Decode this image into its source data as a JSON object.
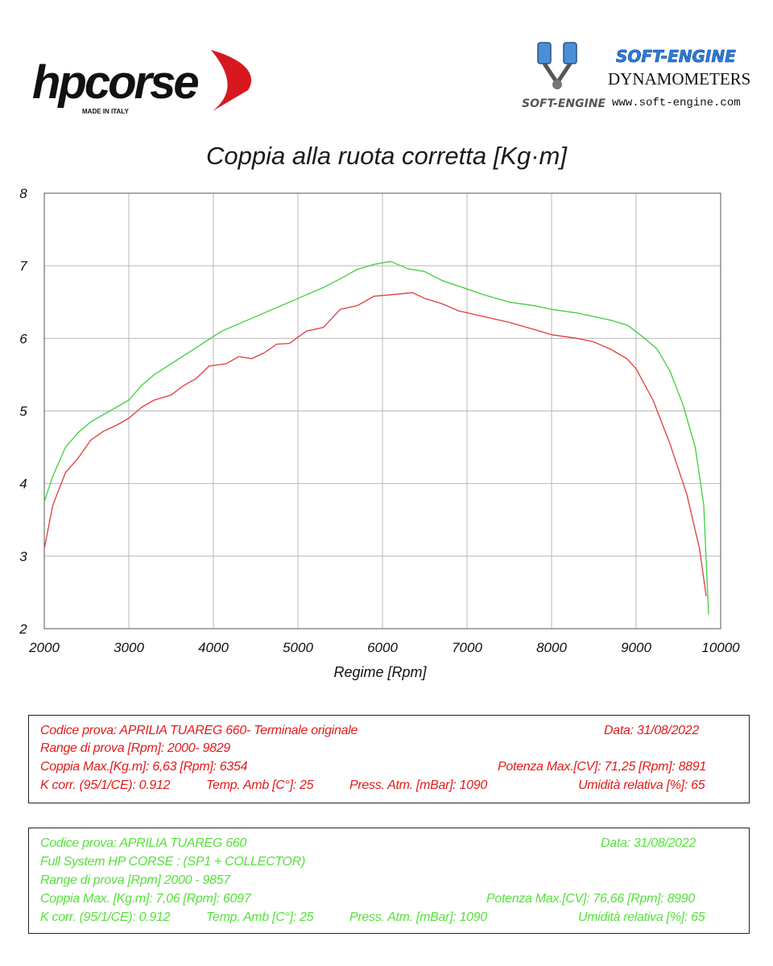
{
  "logos": {
    "left": {
      "wordmark": "hpcorse",
      "tagline": "MADE IN ITALY"
    },
    "right": {
      "brand": "SOFT-ENGINE",
      "subtitle": "DYNAMOMETERS",
      "url": "www.soft-engine.com",
      "badge": "SOFT-ENGINE"
    }
  },
  "chart_data": {
    "type": "line",
    "title": "Coppia alla ruota corretta [Kg·m]",
    "xlabel": "Regime [Rpm]",
    "ylabel": "",
    "xlim": [
      2000,
      10000
    ],
    "ylim": [
      2,
      8
    ],
    "xticks": [
      2000,
      3000,
      4000,
      5000,
      6000,
      7000,
      8000,
      9000,
      10000
    ],
    "yticks": [
      2,
      3,
      4,
      5,
      6,
      7,
      8
    ],
    "grid": true,
    "series": [
      {
        "color": "#e23b3b",
        "x": [
          2000,
          2100,
          2250,
          2400,
          2550,
          2700,
          2850,
          3000,
          3150,
          3300,
          3500,
          3650,
          3800,
          3950,
          4150,
          4300,
          4450,
          4600,
          4750,
          4900,
          5100,
          5300,
          5500,
          5700,
          5900,
          6100,
          6354,
          6500,
          6700,
          6900,
          7200,
          7500,
          7800,
          8000,
          8300,
          8500,
          8700,
          8891,
          9000,
          9200,
          9400,
          9600,
          9750,
          9829
        ],
        "y": [
          3.1,
          3.7,
          4.15,
          4.35,
          4.6,
          4.72,
          4.8,
          4.9,
          5.05,
          5.15,
          5.22,
          5.35,
          5.45,
          5.62,
          5.65,
          5.75,
          5.72,
          5.8,
          5.92,
          5.93,
          6.1,
          6.15,
          6.4,
          6.45,
          6.58,
          6.6,
          6.63,
          6.55,
          6.48,
          6.38,
          6.3,
          6.22,
          6.12,
          6.05,
          6.0,
          5.95,
          5.85,
          5.72,
          5.58,
          5.15,
          4.55,
          3.85,
          3.1,
          2.45
        ]
      },
      {
        "color": "#3dcf3d",
        "x": [
          2000,
          2100,
          2250,
          2400,
          2550,
          2700,
          2850,
          3000,
          3150,
          3300,
          3500,
          3700,
          3900,
          4100,
          4300,
          4500,
          4700,
          4900,
          5100,
          5300,
          5500,
          5700,
          5900,
          6097,
          6300,
          6500,
          6700,
          6900,
          7200,
          7500,
          7800,
          8000,
          8300,
          8500,
          8700,
          8900,
          8990,
          9100,
          9250,
          9400,
          9550,
          9700,
          9800,
          9857
        ],
        "y": [
          3.75,
          4.1,
          4.5,
          4.7,
          4.85,
          4.95,
          5.05,
          5.15,
          5.35,
          5.5,
          5.65,
          5.8,
          5.95,
          6.1,
          6.2,
          6.3,
          6.4,
          6.5,
          6.6,
          6.7,
          6.82,
          6.95,
          7.02,
          7.06,
          6.96,
          6.92,
          6.8,
          6.72,
          6.6,
          6.5,
          6.45,
          6.4,
          6.35,
          6.3,
          6.25,
          6.18,
          6.1,
          6.0,
          5.85,
          5.55,
          5.1,
          4.5,
          3.7,
          2.2
        ]
      }
    ]
  },
  "boxes": {
    "red": {
      "line1_left": "Codice prova: APRILIA TUAREG 660- Terminale originale",
      "line1_right": "Data: 31/08/2022",
      "line2": "Range di prova [Rpm]: 2000- 9829",
      "line3_left": "Coppia Max.[Kg.m]: 6,63 [Rpm]: 6354",
      "line3_right": "Potenza Max.[CV]: 71,25 [Rpm]: 8891",
      "line4_a": "K corr. (95/1/CE): 0.912",
      "line4_b": "Temp. Amb [C°]: 25",
      "line4_c": "Press. Atm. [mBar]: 1090",
      "line4_d": "Umidità relativa [%]: 65"
    },
    "green": {
      "line1_left": "Codice prova: APRILIA TUAREG 660",
      "line1_right": "Data: 31/08/2022",
      "line2": "Full System HP CORSE : (SP1 + COLLECTOR)",
      "line3": "Range di prova [Rpm] 2000 - 9857",
      "line4_left": "Coppia Max. [Kg.m]: 7,06 [Rpm]: 6097",
      "line4_right": "Potenza Max.[CV]: 76,66 [Rpm]: 8990",
      "line5_a": "K corr. (95/1/CE): 0.912",
      "line5_b": "Temp. Amb [C°]: 25",
      "line5_c": "Press. Atm. [mBar]: 1090",
      "line5_d": "Umidità relativa [%]: 65"
    }
  }
}
